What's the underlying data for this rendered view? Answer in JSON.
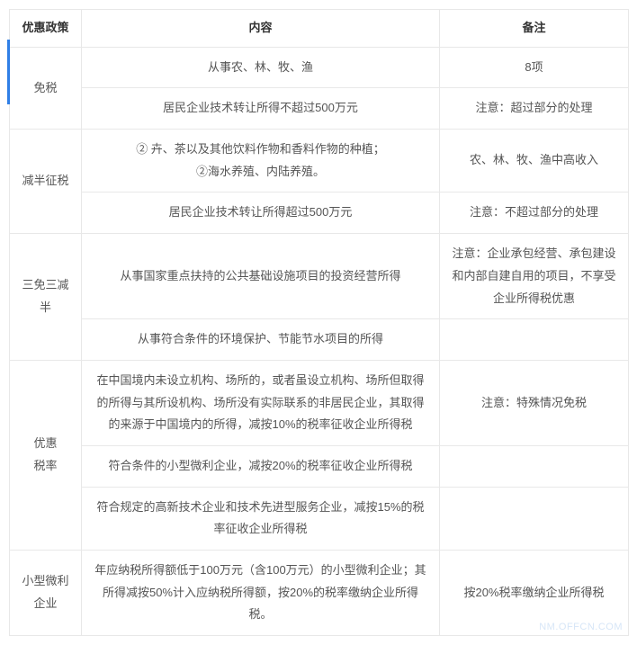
{
  "header": {
    "policy": "优惠政策",
    "content": "内容",
    "note": "备注"
  },
  "rows": [
    {
      "policy": "免税",
      "content": "从事农、林、牧、渔",
      "note": "8项"
    },
    {
      "policy": "",
      "content": "居民企业技术转让所得不超过500万元",
      "note": "注意：超过部分的处理"
    },
    {
      "policy": "减半征税",
      "content": "② 卉、茶以及其他饮料作物和香料作物的种植；\n②海水养殖、内陆养殖。",
      "note": "农、林、牧、渔中高收入"
    },
    {
      "policy": "",
      "content": "居民企业技术转让所得超过500万元",
      "note": "注意：不超过部分的处理"
    },
    {
      "policy": "三免三减半",
      "content": "从事国家重点扶持的公共基础设施项目的投资经营所得",
      "note": "注意：企业承包经营、承包建设和内部自建自用的项目，不享受企业所得税优惠"
    },
    {
      "policy": "",
      "content": "从事符合条件的环境保护、节能节水项目的所得",
      "note": ""
    },
    {
      "policy": "优惠\n税率",
      "content": "在中国境内未设立机构、场所的，或者虽设立机构、场所但取得的所得与其所设机构、场所没有实际联系的非居民企业，其取得的来源于中国境内的所得，减按10%的税率征收企业所得税",
      "note": "注意：特殊情况免税"
    },
    {
      "policy": "",
      "content": "符合条件的小型微利企业，减按20%的税率征收企业所得税",
      "note": ""
    },
    {
      "policy": "",
      "content": "符合规定的高新技术企业和技术先进型服务企业，减按15%的税率征收企业所得税",
      "note": ""
    },
    {
      "policy": "小型微利企业",
      "content": "年应纳税所得额低于100万元（含100万元）的小型微利企业；其所得减按50%计入应纳税所得额，按20%的税率缴纳企业所得税。",
      "note": "按20%税率缴纳企业所得税"
    }
  ],
  "watermark": "NM.OFFCN.COM",
  "colors": {
    "border": "#e8e8e8",
    "text": "#555555",
    "header_text": "#333333",
    "accent": "#2f7fe6",
    "watermark": "#d7e6f7"
  }
}
